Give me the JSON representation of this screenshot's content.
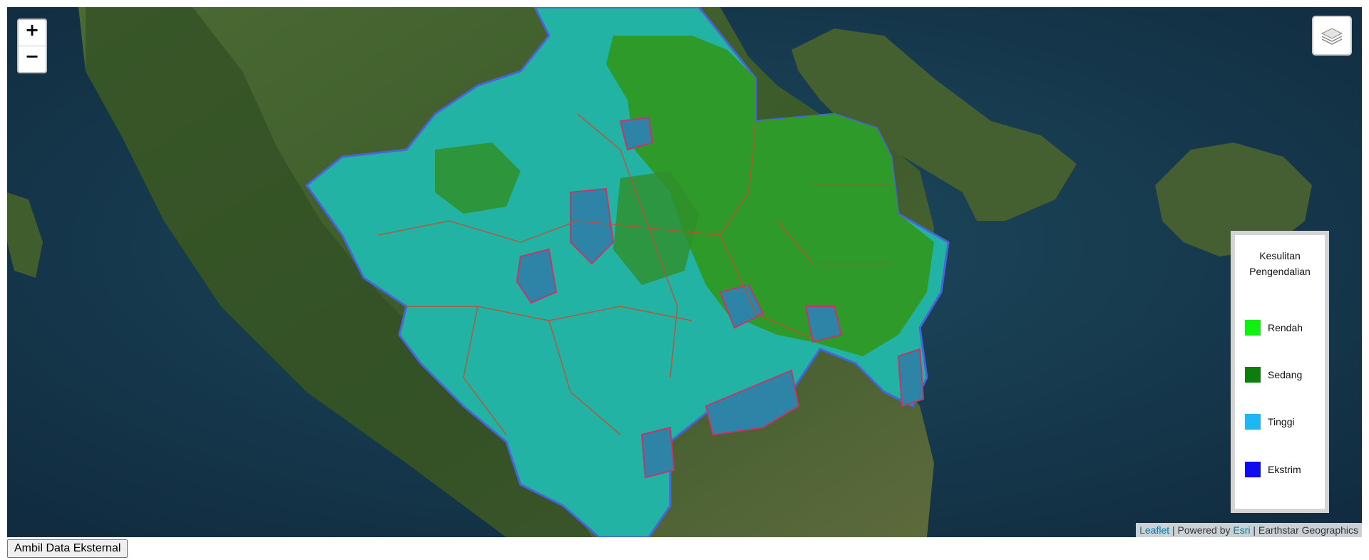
{
  "map": {
    "zoom_in_label": "+",
    "zoom_out_label": "−",
    "layers_icon": "layers-stack-icon",
    "region_name": ""
  },
  "legend": {
    "title_line1": "Kesulitan",
    "title_line2": "Pengendalian",
    "items": [
      {
        "label": "Rendah",
        "color": "#12f012"
      },
      {
        "label": "Sedang",
        "color": "#0d7d0d"
      },
      {
        "label": "Tinggi",
        "color": "#1fb7f2"
      },
      {
        "label": "Ekstrim",
        "color": "#0d0df0"
      }
    ]
  },
  "attribution": {
    "leaflet": "Leaflet",
    "sep1": " | Powered by ",
    "esri": "Esri",
    "sep2": " | Earthstar Geographics"
  },
  "toolbar": {
    "fetch_button": "Ambil Data Eksternal"
  },
  "colors": {
    "sea": "#17394e",
    "land": "#3e5a2b",
    "tinggi_fill": "#22b3a4",
    "sedang_fill": "#2e9a2a",
    "ekstrim_patch": "#2d84a6",
    "boundary": "#cc3333"
  }
}
